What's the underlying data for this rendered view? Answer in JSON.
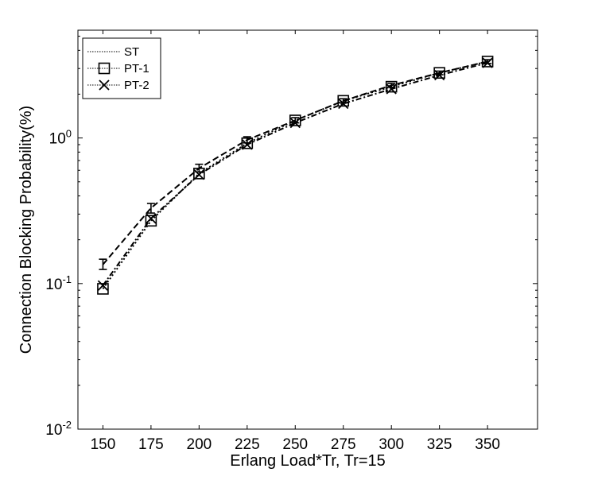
{
  "chart_data": {
    "type": "line",
    "xlabel": "Erlang Load*Tr, Tr=15",
    "ylabel": "Connection Blocking Probability(%)",
    "x": [
      150,
      175,
      200,
      225,
      250,
      275,
      300,
      325,
      350
    ],
    "x_tick_labels": [
      "150",
      "175",
      "200",
      "225",
      "250",
      "275",
      "300",
      "325",
      "350"
    ],
    "xlim": [
      137,
      376
    ],
    "ylim": [
      0.01,
      5.5
    ],
    "yscale": "log",
    "y_ticks": [
      {
        "value": 0.01,
        "base": "10",
        "exp": "-2"
      },
      {
        "value": 0.1,
        "base": "10",
        "exp": "-1"
      },
      {
        "value": 1,
        "base": "10",
        "exp": "0"
      }
    ],
    "grid": false,
    "legend_position": "top-left",
    "series": [
      {
        "name": "ST",
        "marker": "errorbar",
        "dash": "8,4",
        "values": [
          0.135,
          0.33,
          0.62,
          0.97,
          1.32,
          1.8,
          2.3,
          2.8,
          3.35
        ],
        "err_low": [
          0.125,
          0.305,
          0.585,
          0.925,
          1.27,
          1.74,
          2.23,
          2.72,
          3.25
        ],
        "err_high": [
          0.147,
          0.355,
          0.66,
          1.02,
          1.38,
          1.86,
          2.37,
          2.88,
          3.45
        ]
      },
      {
        "name": "PT-1",
        "marker": "square",
        "dash": "2,3",
        "values": [
          0.092,
          0.27,
          0.57,
          0.92,
          1.32,
          1.8,
          2.25,
          2.8,
          3.35
        ]
      },
      {
        "name": "PT-2",
        "marker": "x",
        "dash": "7,3,2,3",
        "values": [
          0.097,
          0.28,
          0.56,
          0.9,
          1.27,
          1.72,
          2.17,
          2.7,
          3.28
        ]
      }
    ]
  }
}
